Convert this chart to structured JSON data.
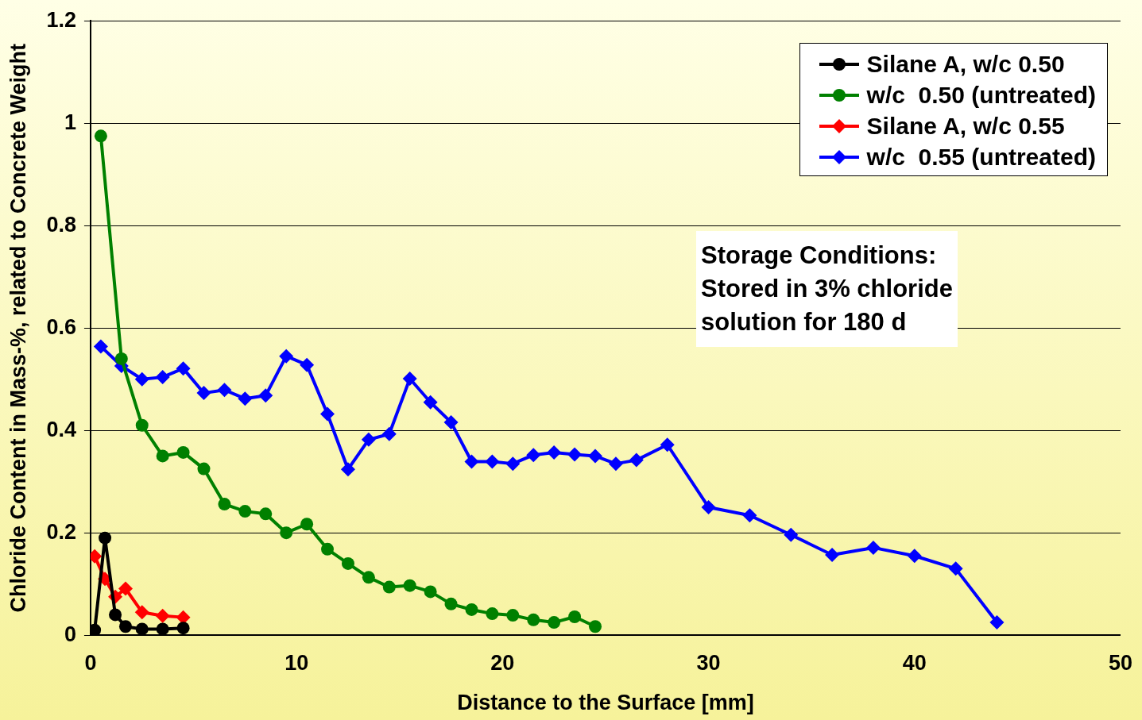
{
  "chart_data": {
    "type": "line",
    "xlabel": "Distance to the Surface [mm]",
    "ylabel": "Chloride Content in Mass-%, related to Concrete Weight",
    "xlim": [
      0,
      50
    ],
    "xticks": [
      0,
      10,
      20,
      30,
      40,
      50
    ],
    "ylim": [
      0,
      1.2
    ],
    "yticks": [
      0,
      0.2,
      0.4,
      0.6,
      0.8,
      1,
      1.2
    ],
    "grid": "y",
    "legend": "top right",
    "annotations": [
      "Storage Conditions:\nStored in 3% chloride\nsolution for 180 d"
    ],
    "series": [
      {
        "name": "Silane A, w/c 0.50",
        "color": "#000000",
        "marker": "circle",
        "x": [
          0.2,
          0.7,
          1.2,
          1.7,
          2.5,
          3.5,
          4.5
        ],
        "values": [
          0.01,
          0.19,
          0.04,
          0.017,
          0.012,
          0.012,
          0.014
        ]
      },
      {
        "name": "w/c  0.50 (untreated)",
        "color": "#008000",
        "marker": "circle",
        "x": [
          0.5,
          1.5,
          2.5,
          3.5,
          4.5,
          5.5,
          6.5,
          7.5,
          8.5,
          9.5,
          10.5,
          11.5,
          12.5,
          13.5,
          14.5,
          15.5,
          16.5,
          17.5,
          18.5,
          19.5,
          20.5,
          21.5,
          22.5,
          23.5,
          24.5
        ],
        "values": [
          0.975,
          0.54,
          0.41,
          0.35,
          0.357,
          0.325,
          0.256,
          0.242,
          0.237,
          0.2,
          0.217,
          0.168,
          0.14,
          0.113,
          0.094,
          0.097,
          0.085,
          0.061,
          0.05,
          0.042,
          0.039,
          0.03,
          0.025,
          0.036,
          0.017
        ]
      },
      {
        "name": "Silane A, w/c 0.55",
        "color": "#ff0000",
        "marker": "diamond",
        "x": [
          0.2,
          0.7,
          1.2,
          1.7,
          2.5,
          3.5,
          4.5
        ],
        "values": [
          0.154,
          0.11,
          0.075,
          0.091,
          0.045,
          0.038,
          0.035
        ]
      },
      {
        "name": "w/c  0.55 (untreated)",
        "color": "#0000ff",
        "marker": "diamond",
        "x": [
          0.5,
          1.5,
          2.5,
          3.5,
          4.5,
          5.5,
          6.5,
          7.5,
          8.5,
          9.5,
          10.5,
          11.5,
          12.5,
          13.5,
          14.5,
          15.5,
          16.5,
          17.5,
          18.5,
          19.5,
          20.5,
          21.5,
          22.5,
          23.5,
          24.5,
          25.5,
          26.5,
          28,
          30,
          32,
          34,
          36,
          38,
          40,
          42,
          44
        ],
        "values": [
          0.564,
          0.526,
          0.5,
          0.504,
          0.521,
          0.473,
          0.479,
          0.462,
          0.468,
          0.545,
          0.528,
          0.432,
          0.324,
          0.382,
          0.393,
          0.501,
          0.455,
          0.416,
          0.339,
          0.339,
          0.335,
          0.352,
          0.357,
          0.353,
          0.35,
          0.335,
          0.342,
          0.372,
          0.25,
          0.234,
          0.196,
          0.157,
          0.171,
          0.155,
          0.13,
          0.025
        ]
      }
    ]
  }
}
